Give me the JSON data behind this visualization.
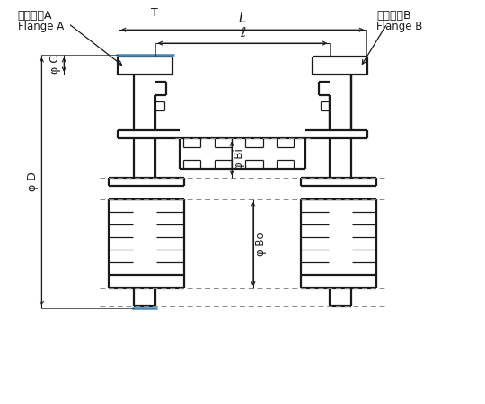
{
  "bg_color": "#ffffff",
  "lc": "#1a1a1a",
  "bc": "#4488bb",
  "dc": "#888888",
  "figsize": [
    5.4,
    4.5
  ],
  "dpi": 100,
  "lw_main": 1.6,
  "lw_thin": 0.9,
  "lw_dim": 0.8,
  "lw_dash": 0.7,
  "labels": {
    "flange_a_jp": "フランジA",
    "flange_a_en": "Flange A",
    "flange_b_jp": "フランジB",
    "flange_b_en": "Flange B",
    "L": "L",
    "ell": "ℓ",
    "T": "T",
    "phi_D": "φ D",
    "phi_C": "φ C",
    "phi_Bi": "φ Bi",
    "phi_Bo": "φ Bo"
  }
}
